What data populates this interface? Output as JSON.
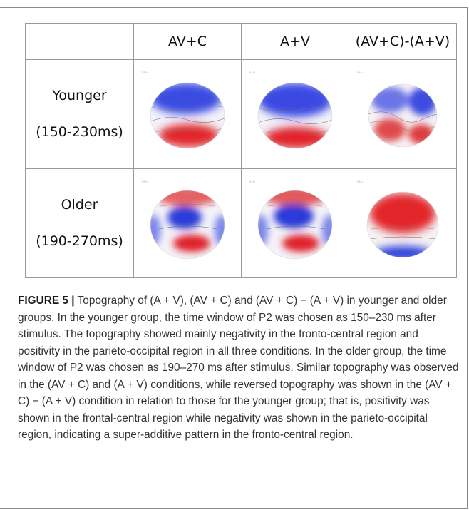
{
  "table": {
    "columns": [
      "",
      "AV+C",
      "A+V",
      "(AV+C)-(A+V)"
    ],
    "rows": [
      {
        "group": "Younger",
        "window": "(150-230ms)",
        "maps": [
          {
            "condition": "AV+C",
            "pattern": "negative-front-positive-back"
          },
          {
            "condition": "A+V",
            "pattern": "negative-front-positive-back"
          },
          {
            "condition": "(AV+C)-(A+V)",
            "pattern": "mixed-wavy"
          }
        ]
      },
      {
        "group": "Older",
        "window": "(190-270ms)",
        "maps": [
          {
            "condition": "AV+C",
            "pattern": "ring-negative-center-positive-lower"
          },
          {
            "condition": "A+V",
            "pattern": "ring-negative-center-positive-lower"
          },
          {
            "condition": "(AV+C)-(A+V)",
            "pattern": "positive-front-negative-back"
          }
        ]
      }
    ]
  },
  "colors": {
    "negative": "#2f3cdc",
    "positive": "#e0262b",
    "border": "#9a9a9a"
  },
  "caption": {
    "label": "FIGURE 5 |",
    "text": " Topography of (A + V), (AV + C) and (AV + C) − (A + V) in younger and older groups. In the younger group, the time window of P2 was chosen as 150–230 ms after stimulus. The topography showed mainly negativity in the fronto-central region and positivity in the parieto-occipital region in all three conditions. In the older group, the time window of P2 was chosen as 190–270 ms after stimulus. Similar topography was observed in the (AV + C) and (A + V) conditions, while reversed topography was shown in the (AV + C) − (A + V) condition in relation to those for the younger group; that is, positivity was shown in the frontal-central region while negativity was shown in the parieto-occipital region, indicating a super-additive pattern in the fronto-central region."
  }
}
